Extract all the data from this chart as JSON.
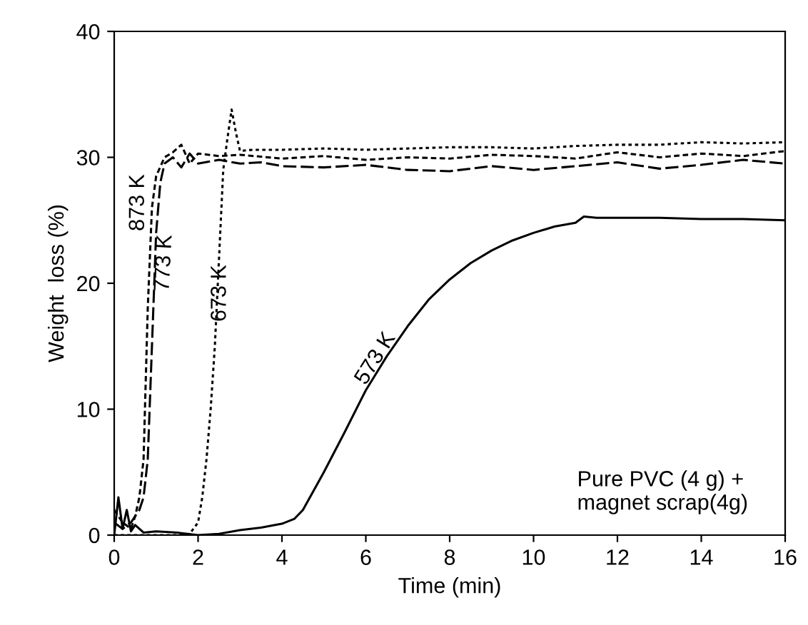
{
  "chart_data": {
    "type": "line",
    "xlabel": "Time (min)",
    "ylabel": "Weight  loss (%)",
    "xlim": [
      0,
      16
    ],
    "ylim": [
      0,
      40
    ],
    "xticks": [
      0,
      2,
      4,
      6,
      8,
      10,
      12,
      14,
      16
    ],
    "yticks": [
      0,
      10,
      20,
      30,
      40
    ],
    "grid": false,
    "legend": false,
    "marker": "none",
    "series": [
      {
        "color": "#000000",
        "line_style": "solid",
        "x": [
          0,
          0.1,
          0.2,
          0.3,
          0.4,
          0.5,
          0.7,
          1.0,
          1.5,
          2.0,
          2.5,
          3.0,
          3.5,
          4.0,
          4.3,
          4.5,
          4.8,
          5.0,
          5.5,
          6.0,
          6.5,
          7.0,
          7.5,
          8.0,
          8.5,
          9.0,
          9.5,
          10.0,
          10.5,
          11.0,
          11.2,
          11.5,
          12,
          13,
          14,
          15,
          16
        ],
        "values": [
          0,
          3,
          0.5,
          2,
          0.3,
          0.8,
          0.2,
          0.3,
          0.2,
          0,
          0.1,
          0.4,
          0.6,
          0.9,
          1.3,
          2,
          3.8,
          5,
          8.2,
          11.5,
          14.2,
          16.6,
          18.7,
          20.3,
          21.6,
          22.6,
          23.4,
          24,
          24.5,
          24.8,
          25.3,
          25.2,
          25.2,
          25.2,
          25.1,
          25.1,
          25
        ]
      },
      {
        "color": "#000000",
        "line_style": "dotted",
        "x": [
          0,
          0.5,
          1.0,
          1.5,
          1.8,
          2.0,
          2.1,
          2.2,
          2.3,
          2.4,
          2.5,
          2.6,
          2.7,
          2.8,
          2.9,
          3.0,
          3.3,
          4,
          5,
          6,
          7,
          8,
          9,
          10,
          11,
          12,
          13,
          14,
          15,
          16
        ],
        "values": [
          0,
          0,
          0,
          0,
          0.1,
          1,
          3,
          6,
          10,
          15,
          22,
          29,
          31.5,
          33.8,
          32,
          30.5,
          30.6,
          30.6,
          30.7,
          30.6,
          30.7,
          30.8,
          30.8,
          30.7,
          30.9,
          31,
          31,
          31.2,
          31.1,
          31.2
        ]
      },
      {
        "color": "#000000",
        "line_style": "dashed",
        "x": [
          0,
          0.2,
          0.4,
          0.6,
          0.7,
          0.8,
          0.9,
          1.0,
          1.1,
          1.2,
          1.4,
          1.6,
          1.8,
          2.0,
          2.5,
          3,
          3.5,
          4,
          5,
          6,
          7,
          8,
          9,
          10,
          11,
          12,
          13,
          14,
          15,
          16
        ],
        "values": [
          1,
          0.5,
          1,
          2,
          3,
          6,
          15,
          24,
          28,
          29.5,
          30,
          29.2,
          30.3,
          29.5,
          29.8,
          29.5,
          29.6,
          29.3,
          29.2,
          29.4,
          29,
          28.9,
          29.3,
          29,
          29.3,
          29.6,
          29.1,
          29.4,
          29.8,
          29.5
        ]
      },
      {
        "color": "#000000",
        "line_style": "dashdot",
        "x": [
          0,
          0.2,
          0.4,
          0.5,
          0.6,
          0.7,
          0.8,
          0.9,
          1.0,
          1.2,
          1.4,
          1.6,
          1.8,
          2.0,
          2.5,
          3,
          4,
          5,
          6,
          7,
          8,
          9,
          10,
          11,
          12,
          13,
          14,
          15,
          16
        ],
        "values": [
          2,
          1,
          0.5,
          1.5,
          3,
          6,
          18,
          26,
          28.5,
          30,
          30.4,
          31,
          29.5,
          30.3,
          30.1,
          30.2,
          29.9,
          30.1,
          29.8,
          30,
          29.9,
          30.2,
          30.1,
          29.9,
          30.4,
          30,
          30.3,
          30.1,
          30.5
        ]
      }
    ],
    "annotations": [
      "573 K",
      "673 K",
      "773 K",
      "873 K",
      "Pure PVC (4 g) +\nmagnet scrap(4g)"
    ]
  }
}
